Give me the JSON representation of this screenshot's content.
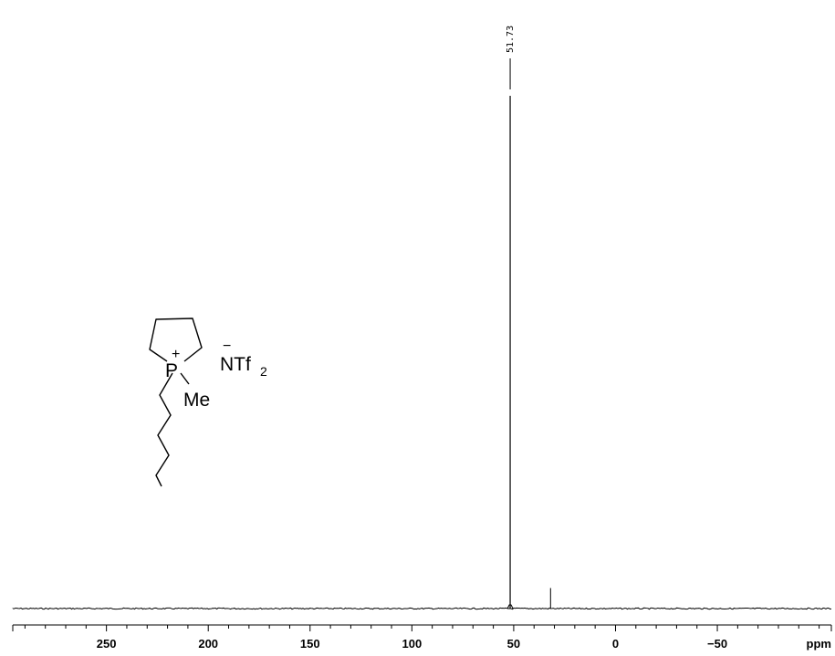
{
  "chart_data": {
    "type": "line",
    "title": "",
    "xlabel": "ppm",
    "ylabel": "",
    "xlim": [
      296,
      -106
    ],
    "x_reversed": true,
    "xticks_major": [
      250,
      200,
      150,
      100,
      50,
      0,
      -50
    ],
    "xtick_labels": [
      "250",
      "200",
      "150",
      "100",
      "50",
      "0",
      "−50"
    ],
    "xticks_minor_step": 10,
    "grid": false,
    "legend": "none",
    "baseline_noise": "small",
    "peaks": [
      {
        "x": 51.73,
        "height": 1.0,
        "label": "51.73"
      },
      {
        "x": 31.9,
        "height": 0.04,
        "label": ""
      }
    ]
  },
  "structure": {
    "phosphorus": "P",
    "charge_cation": "+",
    "methyl": "Me",
    "anion": "NTf",
    "anion_subscript": "2",
    "charge_anion": "−"
  }
}
